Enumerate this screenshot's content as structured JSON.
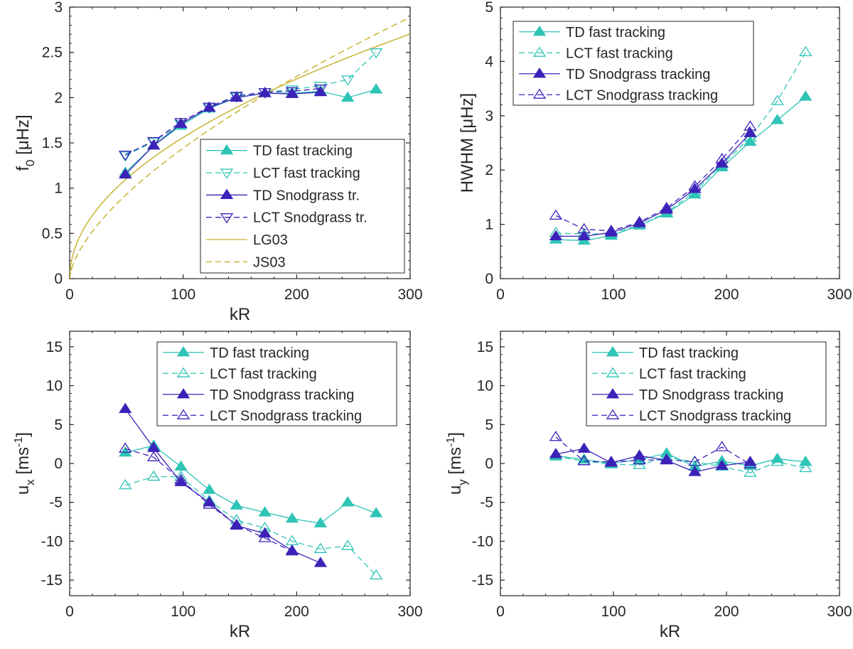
{
  "colors": {
    "fast": "#2ec4b6",
    "snod": "#3c22b8",
    "lg": "#c8b432",
    "axis": "#262626"
  },
  "chart_data": [
    {
      "id": "f0",
      "type": "line",
      "xlabel": "kR",
      "ylabel_main": "f",
      "ylabel_sub": "0",
      "ylabel_unit": " [μHz]",
      "xlim": [
        0,
        300
      ],
      "ylim": [
        0,
        3
      ],
      "xticks": [
        0,
        100,
        200,
        300
      ],
      "xtick_labels": [
        "0",
        "100",
        "200",
        "300"
      ],
      "yticks": [
        0,
        0.5,
        1,
        1.5,
        2,
        2.5,
        3
      ],
      "ytick_labels": [
        "0",
        "0.5",
        "1",
        "1.5",
        "2",
        "2.5",
        "3"
      ],
      "series": [
        {
          "name": "TD fast tracking",
          "color": "fast",
          "dash": false,
          "marker": "tri-up",
          "filled": true,
          "x": [
            49,
            74,
            98,
            123,
            147,
            172,
            196,
            221,
            245,
            270
          ],
          "y": [
            1.17,
            1.47,
            1.69,
            1.88,
            2.0,
            2.05,
            2.05,
            2.07,
            2.0,
            2.09
          ]
        },
        {
          "name": "LCT fast tracking",
          "color": "fast",
          "dash": true,
          "marker": "tri-down",
          "filled": false,
          "x": [
            49,
            74,
            98,
            123,
            147,
            172,
            196,
            221,
            245,
            270
          ],
          "y": [
            1.36,
            1.51,
            1.71,
            1.89,
            2.01,
            2.06,
            2.09,
            2.13,
            2.2,
            2.5
          ]
        },
        {
          "name": "TD Snodgrass tr.",
          "color": "snod",
          "dash": false,
          "marker": "tri-up",
          "filled": true,
          "x": [
            49,
            74,
            98,
            123,
            147,
            172,
            196,
            221
          ],
          "y": [
            1.15,
            1.47,
            1.71,
            1.89,
            2.0,
            2.05,
            2.04,
            2.06
          ]
        },
        {
          "name": "LCT Snodgrass tr.",
          "color": "snod",
          "dash": true,
          "marker": "tri-down",
          "filled": false,
          "x": [
            49,
            74,
            98,
            123,
            147,
            172,
            196,
            221
          ],
          "y": [
            1.37,
            1.52,
            1.73,
            1.9,
            2.02,
            2.06,
            2.07,
            2.1
          ]
        }
      ],
      "curves": [
        {
          "name": "LG03",
          "color": "lg",
          "dash": false,
          "formula": "0.156*sqrt(x)"
        },
        {
          "name": "JS03",
          "color": "lg",
          "dash": true,
          "formula": "0.0785*x^0.632"
        }
      ],
      "legend": {
        "placement": "lower-right",
        "entries": [
          "TD fast tracking",
          "LCT fast tracking",
          "TD Snodgrass tr.",
          "LCT Snodgrass tr.",
          "LG03",
          "JS03"
        ]
      }
    },
    {
      "id": "hwhm",
      "type": "line",
      "xlabel": "",
      "ylabel": "HWHM [μHz]",
      "xlim": [
        0,
        300
      ],
      "ylim": [
        0,
        5
      ],
      "xticks": [
        0,
        100,
        200,
        300
      ],
      "xtick_labels": [
        "0",
        "100",
        "200",
        "300"
      ],
      "yticks": [
        0,
        1,
        2,
        3,
        4,
        5
      ],
      "ytick_labels": [
        "0",
        "1",
        "2",
        "3",
        "4",
        "5"
      ],
      "series": [
        {
          "name": "TD fast tracking",
          "color": "fast",
          "dash": false,
          "marker": "tri-up",
          "filled": true,
          "x": [
            49,
            74,
            98,
            123,
            147,
            172,
            196,
            221,
            245,
            270
          ],
          "y": [
            0.72,
            0.7,
            0.79,
            0.98,
            1.2,
            1.55,
            2.05,
            2.52,
            2.92,
            3.35
          ]
        },
        {
          "name": "LCT fast tracking",
          "color": "fast",
          "dash": true,
          "marker": "tri-up",
          "filled": false,
          "x": [
            49,
            74,
            98,
            123,
            147,
            172,
            196,
            221,
            245,
            270
          ],
          "y": [
            0.84,
            0.82,
            0.83,
            0.98,
            1.22,
            1.6,
            2.1,
            2.6,
            3.27,
            4.17
          ]
        },
        {
          "name": "TD Snodgrass tracking",
          "color": "snod",
          "dash": false,
          "marker": "tri-up",
          "filled": true,
          "x": [
            49,
            74,
            98,
            123,
            147,
            172,
            196,
            221
          ],
          "y": [
            0.78,
            0.78,
            0.85,
            1.02,
            1.27,
            1.65,
            2.12,
            2.68
          ]
        },
        {
          "name": "LCT Snodgrass tracking",
          "color": "snod",
          "dash": true,
          "marker": "tri-up",
          "filled": false,
          "x": [
            49,
            74,
            98,
            123,
            147,
            172,
            196,
            221
          ],
          "y": [
            1.16,
            0.91,
            0.88,
            1.04,
            1.3,
            1.7,
            2.2,
            2.8
          ]
        }
      ],
      "curves": [],
      "legend": {
        "placement": "top-left",
        "entries": [
          "TD fast tracking",
          "LCT fast tracking",
          "TD Snodgrass tracking",
          "LCT Snodgrass tracking"
        ]
      }
    },
    {
      "id": "ux",
      "type": "line",
      "xlabel": "kR",
      "ylabel_main": "u",
      "ylabel_sub": "x",
      "ylabel_unit": " [ms",
      "ylabel_sup": "-1",
      "ylabel_end": "]",
      "xlim": [
        0,
        300
      ],
      "ylim": [
        -17,
        17
      ],
      "xticks": [
        0,
        100,
        200,
        300
      ],
      "xtick_labels": [
        "0",
        "100",
        "200",
        "300"
      ],
      "yticks": [
        -15,
        -10,
        -5,
        0,
        5,
        10,
        15
      ],
      "ytick_labels": [
        "-15",
        "-10",
        "-5",
        "0",
        "5",
        "10",
        "15"
      ],
      "series": [
        {
          "name": "TD fast tracking",
          "color": "fast",
          "dash": false,
          "marker": "tri-up",
          "filled": true,
          "x": [
            49,
            74,
            98,
            123,
            147,
            172,
            196,
            221,
            245,
            270
          ],
          "y": [
            1.4,
            2.3,
            -0.4,
            -3.4,
            -5.4,
            -6.3,
            -7.1,
            -7.7,
            -5.0,
            -6.4
          ]
        },
        {
          "name": "LCT fast tracking",
          "color": "fast",
          "dash": true,
          "marker": "tri-up",
          "filled": false,
          "x": [
            49,
            74,
            98,
            123,
            147,
            172,
            196,
            221,
            245,
            270
          ],
          "y": [
            -2.8,
            -1.7,
            -1.7,
            -4.8,
            -7.3,
            -8.3,
            -10.0,
            -11.0,
            -10.6,
            -14.4
          ]
        },
        {
          "name": "TD Snodgrass tracking",
          "color": "snod",
          "dash": false,
          "marker": "tri-up",
          "filled": true,
          "x": [
            49,
            74,
            98,
            123,
            147,
            172,
            196,
            221
          ],
          "y": [
            7.0,
            2.0,
            -2.4,
            -5.0,
            -8.0,
            -9.0,
            -11.2,
            -12.8
          ]
        },
        {
          "name": "LCT Snodgrass tracking",
          "color": "snod",
          "dash": true,
          "marker": "tri-up",
          "filled": false,
          "x": [
            49,
            74,
            98,
            123,
            147,
            172,
            196
          ],
          "y": [
            1.9,
            0.8,
            -2.1,
            -5.3,
            -7.9,
            -9.6,
            -11.3
          ]
        }
      ],
      "curves": [],
      "legend": {
        "placement": "top-right",
        "entries": [
          "TD fast tracking",
          "LCT fast tracking",
          "TD Snodgrass tracking",
          "LCT Snodgrass tracking"
        ]
      }
    },
    {
      "id": "uy",
      "type": "line",
      "xlabel": "kR",
      "ylabel_main": "u",
      "ylabel_sub": "y",
      "ylabel_unit": " [ms",
      "ylabel_sup": "-1",
      "ylabel_end": "]",
      "xlim": [
        0,
        300
      ],
      "ylim": [
        -17,
        17
      ],
      "xticks": [
        0,
        100,
        200,
        300
      ],
      "xtick_labels": [
        "0",
        "100",
        "200",
        "300"
      ],
      "yticks": [
        -15,
        -10,
        -5,
        0,
        5,
        10,
        15
      ],
      "ytick_labels": [
        "-15",
        "-10",
        "-5",
        "0",
        "5",
        "10",
        "15"
      ],
      "series": [
        {
          "name": "TD fast tracking",
          "color": "fast",
          "dash": false,
          "marker": "tri-up",
          "filled": true,
          "x": [
            49,
            74,
            98,
            123,
            147,
            172,
            196,
            221,
            245,
            270
          ],
          "y": [
            1.0,
            0.5,
            0.0,
            0.5,
            1.3,
            -0.4,
            0.3,
            -0.3,
            0.6,
            0.2
          ]
        },
        {
          "name": "LCT fast tracking",
          "color": "fast",
          "dash": true,
          "marker": "tri-up",
          "filled": false,
          "x": [
            49,
            74,
            98,
            123,
            147,
            172,
            196,
            221,
            245,
            270
          ],
          "y": [
            0.9,
            0.3,
            -0.1,
            -0.2,
            0.8,
            0.2,
            -0.4,
            -1.2,
            0.2,
            -0.6
          ]
        },
        {
          "name": "TD Snodgrass tracking",
          "color": "snod",
          "dash": false,
          "marker": "tri-up",
          "filled": true,
          "x": [
            49,
            74,
            98,
            123,
            147,
            172,
            196,
            221
          ],
          "y": [
            1.2,
            1.9,
            0.1,
            1.0,
            0.4,
            -1.1,
            -0.3,
            0.2
          ]
        },
        {
          "name": "LCT Snodgrass tracking",
          "color": "snod",
          "dash": true,
          "marker": "tri-up",
          "filled": false,
          "x": [
            49,
            74,
            98,
            123,
            147,
            172,
            196,
            221
          ],
          "y": [
            3.4,
            0.3,
            0.2,
            0.4,
            0.5,
            0.2,
            2.1,
            -0.1
          ]
        }
      ],
      "curves": [],
      "legend": {
        "placement": "top-right",
        "entries": [
          "TD fast tracking",
          "LCT fast tracking",
          "TD Snodgrass tracking",
          "LCT Snodgrass tracking"
        ]
      }
    }
  ]
}
